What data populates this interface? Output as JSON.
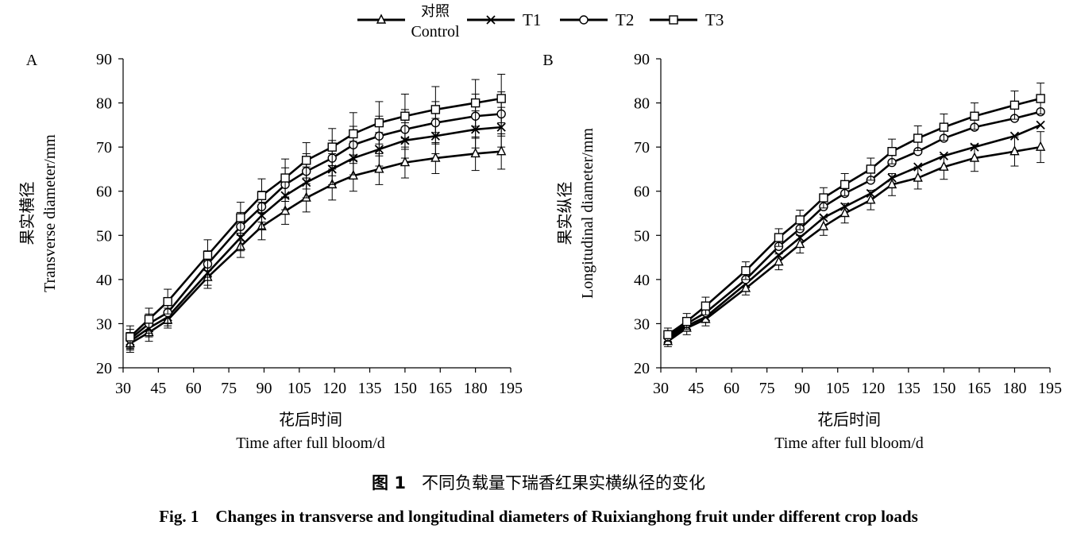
{
  "legend": {
    "items": [
      {
        "label_line1": "对照",
        "label_line2": "Control",
        "marker": "triangle"
      },
      {
        "label_line1": "T1",
        "label_line2": "",
        "marker": "cross"
      },
      {
        "label_line1": "T2",
        "label_line2": "",
        "marker": "circle"
      },
      {
        "label_line1": "T3",
        "label_line2": "",
        "marker": "square"
      }
    ]
  },
  "caption": {
    "cn_prefix": "图 1",
    "cn_text": "不同负载量下瑞香红果实横纵径的变化",
    "en": "Fig. 1    Changes in transverse and longitudinal diameters of Ruixianghong fruit under different crop loads"
  },
  "chart_data": [
    {
      "type": "line",
      "panel": "A",
      "xlabel_cn": "花后时间",
      "xlabel_en": "Time after full bloom/d",
      "ylabel_cn": "果实横径",
      "ylabel_en": "Transverse diameter/mm",
      "xlim": [
        30,
        195
      ],
      "ylim": [
        20,
        90
      ],
      "xticks": [
        30,
        45,
        60,
        75,
        90,
        105,
        120,
        135,
        150,
        165,
        180,
        195
      ],
      "yticks": [
        20,
        30,
        40,
        50,
        60,
        70,
        80,
        90
      ],
      "x": [
        33,
        41,
        49,
        66,
        80,
        89,
        99,
        108,
        119,
        128,
        139,
        150,
        163,
        180,
        191
      ],
      "series": [
        {
          "name": "对照 Control",
          "marker": "triangle",
          "values": [
            25.5,
            28,
            30.8,
            40.5,
            47.5,
            52,
            55.5,
            58.5,
            61.5,
            63.5,
            65,
            66.5,
            67.5,
            68.5,
            69
          ],
          "errors": [
            2,
            2,
            1.8,
            2.5,
            2.5,
            3,
            3,
            3.2,
            3.5,
            3.5,
            3.5,
            3.5,
            3.5,
            3.8,
            4
          ]
        },
        {
          "name": "T1",
          "marker": "cross",
          "values": [
            26,
            29,
            31.5,
            41.5,
            49.5,
            54.5,
            59,
            62,
            65,
            67.5,
            69.5,
            71.5,
            72.5,
            74,
            74.5
          ],
          "errors": [
            2,
            2,
            2,
            2.8,
            3,
            3,
            3.2,
            3.5,
            3.5,
            3.8,
            3.8,
            4,
            4,
            4.2,
            4.5
          ]
        },
        {
          "name": "T2",
          "marker": "circle",
          "values": [
            26.5,
            30,
            32.5,
            43.5,
            52,
            56.5,
            61.5,
            64.5,
            67.5,
            70.5,
            72.5,
            74,
            75.5,
            77,
            77.5
          ],
          "errors": [
            2.2,
            2.2,
            2.5,
            3,
            3.2,
            3.5,
            3.8,
            4,
            4,
            4.2,
            4.5,
            4.5,
            4.8,
            5,
            5
          ]
        },
        {
          "name": "T3",
          "marker": "square",
          "values": [
            27,
            31,
            35,
            45.5,
            54,
            59,
            63,
            67,
            70,
            73,
            75.5,
            77,
            78.5,
            80,
            81
          ],
          "errors": [
            2.5,
            2.5,
            2.8,
            3.5,
            3.5,
            3.8,
            4.3,
            4,
            4.2,
            4.8,
            4.8,
            5,
            5.2,
            5.3,
            5.5
          ]
        }
      ]
    },
    {
      "type": "line",
      "panel": "B",
      "xlabel_cn": "花后时间",
      "xlabel_en": "Time after full bloom/d",
      "ylabel_cn": "果实纵径",
      "ylabel_en": "Longitudinal diameter/mm",
      "xlim": [
        30,
        195
      ],
      "ylim": [
        20,
        90
      ],
      "xticks": [
        30,
        45,
        60,
        75,
        90,
        105,
        120,
        135,
        150,
        165,
        180,
        195
      ],
      "yticks": [
        20,
        30,
        40,
        50,
        60,
        70,
        80,
        90
      ],
      "x": [
        33,
        41,
        49,
        66,
        80,
        89,
        99,
        108,
        119,
        128,
        139,
        150,
        163,
        180,
        191
      ],
      "series": [
        {
          "name": "对照 Control",
          "marker": "triangle",
          "values": [
            26,
            29,
            31,
            38,
            44,
            48,
            52,
            55,
            58,
            61.5,
            63,
            65.5,
            67.5,
            69,
            70
          ],
          "errors": [
            1.2,
            1.5,
            1.5,
            1.5,
            1.8,
            2,
            2,
            2.2,
            2.2,
            2.5,
            2.5,
            2.8,
            3,
            3.3,
            3.5
          ]
        },
        {
          "name": "T1",
          "marker": "cross",
          "values": [
            26.5,
            29.5,
            31.5,
            39,
            45.5,
            49.5,
            54,
            56.5,
            59.5,
            63,
            65.5,
            68,
            70,
            72.5,
            75
          ]
        },
        {
          "name": "T2",
          "marker": "circle",
          "values": [
            27,
            30,
            32.5,
            40,
            47.5,
            51.5,
            56.5,
            59.5,
            62.5,
            66.5,
            69,
            72,
            74.5,
            76.5,
            78
          ]
        },
        {
          "name": "T3",
          "marker": "square",
          "values": [
            27.5,
            30.5,
            34,
            42,
            49.5,
            53.5,
            58.5,
            61.5,
            65,
            69,
            72,
            74.5,
            77,
            79.5,
            81
          ],
          "errors": [
            1.5,
            1.8,
            2,
            2,
            2,
            2.2,
            2.3,
            2.5,
            2.5,
            2.8,
            2.8,
            3,
            3,
            3.2,
            3.5
          ]
        }
      ]
    }
  ]
}
